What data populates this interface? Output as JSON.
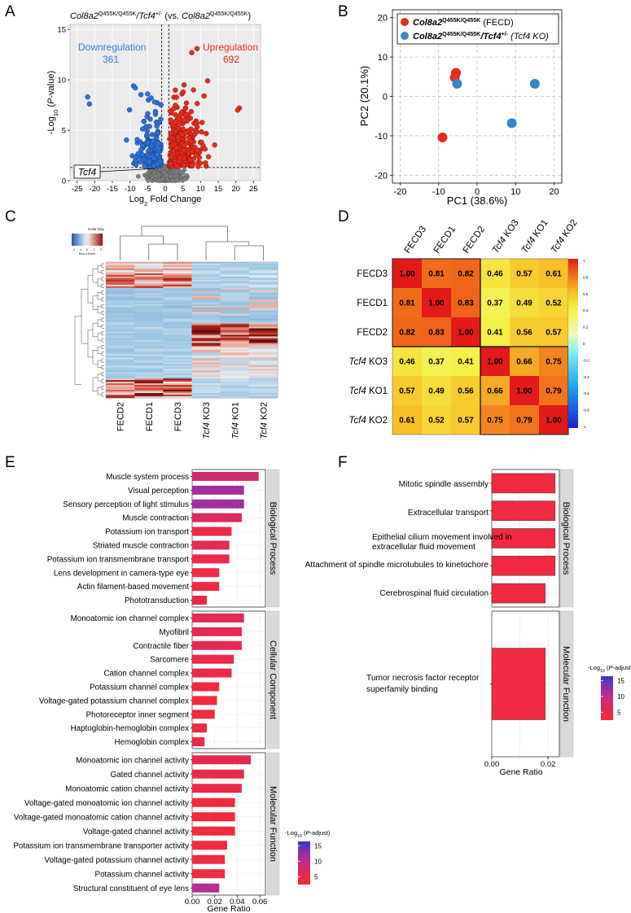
{
  "panel_letters": [
    "A",
    "B",
    "C",
    "D",
    "E",
    "F"
  ],
  "colors": {
    "up": "#e32b1f",
    "down": "#2f6fd1",
    "ns": "#7d7d7d",
    "fecd": "#e32b1f",
    "ko": "#3a84c6",
    "panel_bg": "#ebebeb",
    "strip_bg": "#d9d9d9"
  },
  "chart_data": [
    {
      "id": "A",
      "type": "scatter",
      "title_prefix": "Col8a2",
      "title_sup1": "Q455K/Q455K",
      "title_mid": "/Tcf4",
      "title_sup2": "+/-",
      "title_vs": " (vs. ",
      "title_gene2": "Col8a2",
      "title_sup3": "Q455K/Q455K",
      "title_close": ")",
      "xlabel_pre": "Log",
      "xlabel_sub": "2",
      "xlabel_post": " Fold Change",
      "ylabel_pre": "-Log",
      "ylabel_sub": "10",
      "ylabel_mid": " (",
      "ylabel_it": "P",
      "ylabel_post": "-value)",
      "xlim": [
        -27,
        27
      ],
      "ylim": [
        0,
        15.5
      ],
      "xticks": [
        -25,
        -20,
        -15,
        -10,
        -5,
        0,
        5,
        10,
        15,
        20,
        25
      ],
      "yticks": [
        0,
        5,
        10,
        15
      ],
      "thresholds": {
        "log2fc": [
          -1,
          1
        ],
        "neglog10p": 1.3
      },
      "down_label": "Downregulation",
      "down_count": "361",
      "up_label": "Upregulation",
      "up_count": "692",
      "annotation": "Tcf4",
      "annotation_point": [
        -3.0,
        1.2
      ],
      "highlighted_points": {
        "down": [
          [
            -22,
            8.3
          ],
          [
            -21.5,
            7.6
          ],
          [
            -9,
            9.4
          ],
          [
            -8.5,
            9.2
          ],
          [
            -5,
            8.6
          ],
          [
            -4.8,
            8.0
          ],
          [
            -4,
            8.2
          ],
          [
            -3,
            7.8
          ]
        ],
        "up": [
          [
            7.5,
            12.7
          ],
          [
            9,
            13.1
          ],
          [
            12,
            9.9
          ],
          [
            8,
            9.0
          ],
          [
            21,
            7.2
          ],
          [
            20.5,
            7.0
          ],
          [
            6,
            7.7
          ],
          [
            11,
            8.4
          ]
        ]
      }
    },
    {
      "id": "B",
      "type": "scatter",
      "xlabel": "PC1 (38.6%)",
      "ylabel": "PC2 (20.1%)",
      "xlim": [
        -22,
        22
      ],
      "ylim": [
        -22,
        22
      ],
      "xticks": [
        -20,
        -10,
        0,
        10,
        20
      ],
      "yticks": [
        -20,
        -10,
        0,
        10,
        20
      ],
      "legend": [
        {
          "gene": "Col8a2",
          "sup": "Q455K/Q455K",
          "rest": " (FECD)"
        },
        {
          "gene": "Col8a2",
          "sup": "Q455K/Q455K",
          "mid": "/Tcf4",
          "sup2": "+/-",
          "rest": " (Tcf4 KO)"
        }
      ],
      "series": [
        {
          "name": "FECD",
          "points": [
            [
              -5.5,
              6.0
            ],
            [
              -5.8,
              4.8
            ],
            [
              -9,
              -10.4
            ]
          ]
        },
        {
          "name": "Tcf4 KO",
          "points": [
            [
              -5.2,
              3.2
            ],
            [
              15,
              3.2
            ],
            [
              9,
              -6.8
            ]
          ]
        }
      ]
    },
    {
      "id": "C",
      "type": "heatmap",
      "key_title": "Color Key",
      "key_ticks": [
        "-1",
        "-1",
        "0",
        "1",
        "2"
      ],
      "key_label": "Row Z-Score",
      "columns": [
        "FECD2",
        "FECD1",
        "FECD3",
        "Tcf4 KO3",
        "Tcf4 KO1",
        "Tcf4 KO2"
      ]
    },
    {
      "id": "D",
      "type": "heatmap",
      "labels": [
        "FECD3",
        "FECD1",
        "FECD2",
        "Tcf4 KO3",
        "Tcf4 KO1",
        "Tcf4 KO2"
      ],
      "matrix": [
        [
          1.0,
          0.81,
          0.82,
          0.46,
          0.57,
          0.61
        ],
        [
          0.81,
          1.0,
          0.83,
          0.37,
          0.49,
          0.52
        ],
        [
          0.82,
          0.83,
          1.0,
          0.41,
          0.56,
          0.57
        ],
        [
          0.46,
          0.37,
          0.41,
          1.0,
          0.66,
          0.75
        ],
        [
          0.57,
          0.49,
          0.56,
          0.66,
          1.0,
          0.79
        ],
        [
          0.61,
          0.52,
          0.57,
          0.75,
          0.79,
          1.0
        ]
      ],
      "colorbar_ticks": [
        "1",
        "0.8",
        "0.6",
        "0.4",
        "0.2",
        "0",
        "-0.2",
        "-0.4",
        "-0.6",
        "-0.8",
        "-1"
      ]
    },
    {
      "id": "E",
      "type": "bar",
      "xlabel": "Gene Ratio",
      "xlim": [
        0,
        0.065
      ],
      "xticks": [
        "0.00",
        "0.02",
        "0.04",
        "0.06"
      ],
      "legend_title_pre": "-Log",
      "legend_title_sub": "10",
      "legend_title_mid": " (",
      "legend_title_it": "P",
      "legend_title_post": "-adjust)",
      "legend_ticks": [
        "15",
        "10",
        "5"
      ],
      "facets": [
        {
          "name": "Biological Process",
          "bars": [
            {
              "term": "Muscle system process",
              "value": 0.059,
              "padj": 8
            },
            {
              "term": "Visual perception",
              "value": 0.046,
              "padj": 11
            },
            {
              "term": "Sensory perception of light stimulus",
              "value": 0.046,
              "padj": 11
            },
            {
              "term": "Muscle contraction",
              "value": 0.044,
              "padj": 7
            },
            {
              "term": "Potassium ion transport",
              "value": 0.035,
              "padj": 5
            },
            {
              "term": "Striated muscle contraction",
              "value": 0.033,
              "padj": 6
            },
            {
              "term": "Potassium ion transmembrane transport",
              "value": 0.033,
              "padj": 5
            },
            {
              "term": "Lens development in camera-type eye",
              "value": 0.024,
              "padj": 4
            },
            {
              "term": "Actin filament-based movement",
              "value": 0.024,
              "padj": 4
            },
            {
              "term": "Phototransduction",
              "value": 0.013,
              "padj": 5
            }
          ]
        },
        {
          "name": "Cellular Component",
          "bars": [
            {
              "term": "Monoatomic ion channel complex",
              "value": 0.046,
              "padj": 6
            },
            {
              "term": "Myofibril",
              "value": 0.044,
              "padj": 6
            },
            {
              "term": "Contractile fiber",
              "value": 0.044,
              "padj": 6
            },
            {
              "term": "Sarcomere",
              "value": 0.037,
              "padj": 5
            },
            {
              "term": "Cation channel complex",
              "value": 0.035,
              "padj": 5
            },
            {
              "term": "Potassium channel complex",
              "value": 0.024,
              "padj": 4
            },
            {
              "term": "Voltage-gated potassium channel complex",
              "value": 0.022,
              "padj": 4
            },
            {
              "term": "Photoreceptor inner segment",
              "value": 0.02,
              "padj": 4
            },
            {
              "term": "Haptoglobin-hemoglobin complex",
              "value": 0.013,
              "padj": 4
            },
            {
              "term": "Hemoglobin complex",
              "value": 0.011,
              "padj": 4
            }
          ]
        },
        {
          "name": "Molecular Function",
          "bars": [
            {
              "term": "Monoatomic ion channel activity",
              "value": 0.052,
              "padj": 6
            },
            {
              "term": "Gated channel activity",
              "value": 0.046,
              "padj": 5
            },
            {
              "term": "Monoatomic cation channel activity",
              "value": 0.044,
              "padj": 5
            },
            {
              "term": "Voltage-gated monoatomic ion channel activity",
              "value": 0.038,
              "padj": 4
            },
            {
              "term": "Voltage-gated monoatomic cation channel activity",
              "value": 0.038,
              "padj": 4
            },
            {
              "term": "Voltage-gated channel activity",
              "value": 0.038,
              "padj": 4
            },
            {
              "term": "Potassium ion transmembrane transporter activity",
              "value": 0.031,
              "padj": 4
            },
            {
              "term": "Voltage-gated potassium channel activity",
              "value": 0.029,
              "padj": 4
            },
            {
              "term": "Potassium channel activity",
              "value": 0.029,
              "padj": 4
            },
            {
              "term": "Structural constituent of eye lens",
              "value": 0.024,
              "padj": 10
            }
          ]
        }
      ]
    },
    {
      "id": "F",
      "type": "bar",
      "xlabel": "Gene Ratio",
      "xlim": [
        0,
        0.024
      ],
      "xticks": [
        "0.00",
        "0.02"
      ],
      "legend_title_pre": "-Log",
      "legend_title_sub": "10",
      "legend_title_mid": " (",
      "legend_title_it": "P",
      "legend_title_post": "-adjust)",
      "legend_ticks": [
        "15",
        "10",
        "5"
      ],
      "facets": [
        {
          "name": "Biological Process",
          "bars": [
            {
              "term": "Mitotic spindle assembly",
              "value": 0.0225,
              "padj": 4
            },
            {
              "term": "Extracellular transport",
              "value": 0.0225,
              "padj": 4
            },
            {
              "term": "Epithelial cilium movement involved in extracellular fluid movement",
              "value": 0.0225,
              "padj": 4
            },
            {
              "term": "Attachment of spindle microtubules to kinetochore",
              "value": 0.0225,
              "padj": 4
            },
            {
              "term": "Cerebrospinal fluid circulation",
              "value": 0.019,
              "padj": 4
            }
          ]
        },
        {
          "name": "Molecular Function",
          "bars": [
            {
              "term": "Tumor necrosis factor receptor superfamily binding",
              "value": 0.019,
              "padj": 4
            }
          ]
        }
      ]
    }
  ]
}
